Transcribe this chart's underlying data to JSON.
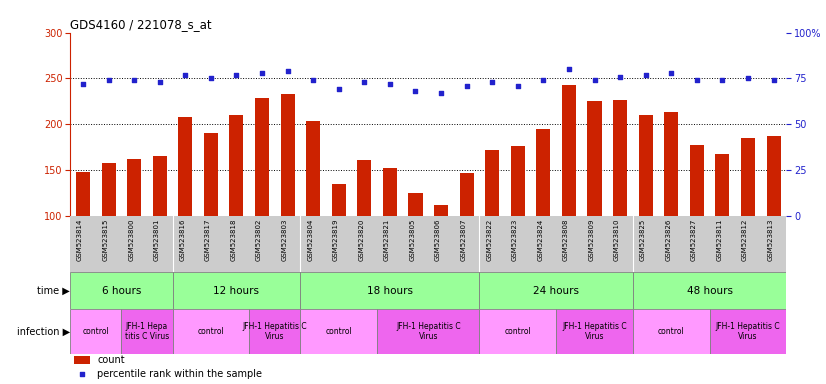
{
  "title": "GDS4160 / 221078_s_at",
  "samples": [
    "GSM523814",
    "GSM523815",
    "GSM523800",
    "GSM523801",
    "GSM523816",
    "GSM523817",
    "GSM523818",
    "GSM523802",
    "GSM523803",
    "GSM523804",
    "GSM523819",
    "GSM523820",
    "GSM523821",
    "GSM523805",
    "GSM523806",
    "GSM523807",
    "GSM523822",
    "GSM523823",
    "GSM523824",
    "GSM523808",
    "GSM523809",
    "GSM523810",
    "GSM523825",
    "GSM523826",
    "GSM523827",
    "GSM523811",
    "GSM523812",
    "GSM523813"
  ],
  "counts": [
    148,
    157,
    162,
    165,
    208,
    190,
    210,
    228,
    233,
    203,
    135,
    161,
    152,
    125,
    112,
    147,
    172,
    176,
    195,
    243,
    225,
    226,
    210,
    213,
    177,
    167,
    185,
    187
  ],
  "percentiles": [
    72,
    74,
    74,
    73,
    77,
    75,
    77,
    78,
    79,
    74,
    69,
    73,
    72,
    68,
    67,
    71,
    73,
    71,
    74,
    80,
    74,
    76,
    77,
    78,
    74,
    74,
    75,
    74
  ],
  "bar_color": "#cc2200",
  "dot_color": "#2222cc",
  "ylim_left": [
    100,
    300
  ],
  "ylim_right": [
    0,
    100
  ],
  "yticks_left": [
    100,
    150,
    200,
    250,
    300
  ],
  "yticks_right": [
    0,
    25,
    50,
    75,
    100
  ],
  "ytick_right_labels": [
    "0",
    "25",
    "50",
    "75",
    "100%"
  ],
  "time_groups": [
    {
      "label": "6 hours",
      "start": 0,
      "end": 4
    },
    {
      "label": "12 hours",
      "start": 4,
      "end": 9
    },
    {
      "label": "18 hours",
      "start": 9,
      "end": 16
    },
    {
      "label": "24 hours",
      "start": 16,
      "end": 22
    },
    {
      "label": "48 hours",
      "start": 22,
      "end": 28
    }
  ],
  "infection_groups": [
    {
      "label": "control",
      "start": 0,
      "end": 2,
      "type": "control"
    },
    {
      "label": "JFH-1 Hepa\ntitis C Virus",
      "start": 2,
      "end": 4,
      "type": "virus"
    },
    {
      "label": "control",
      "start": 4,
      "end": 7,
      "type": "control"
    },
    {
      "label": "JFH-1 Hepatitis C\nVirus",
      "start": 7,
      "end": 9,
      "type": "virus"
    },
    {
      "label": "control",
      "start": 9,
      "end": 12,
      "type": "control"
    },
    {
      "label": "JFH-1 Hepatitis C\nVirus",
      "start": 12,
      "end": 16,
      "type": "virus"
    },
    {
      "label": "control",
      "start": 16,
      "end": 19,
      "type": "control"
    },
    {
      "label": "JFH-1 Hepatitis C\nVirus",
      "start": 19,
      "end": 22,
      "type": "virus"
    },
    {
      "label": "control",
      "start": 22,
      "end": 25,
      "type": "control"
    },
    {
      "label": "JFH-1 Hepatitis C\nVirus",
      "start": 25,
      "end": 28,
      "type": "virus"
    }
  ],
  "time_bg_color": "#99ff99",
  "infection_control_color": "#ff99ff",
  "infection_virus_color": "#ee66ee",
  "xlabel_bg_color": "#cccccc",
  "chart_bg_color": "#ffffff",
  "left_axis_color": "#cc2200",
  "right_axis_color": "#2222cc",
  "grid_yticks": [
    150,
    200,
    250
  ],
  "n_samples": 28
}
